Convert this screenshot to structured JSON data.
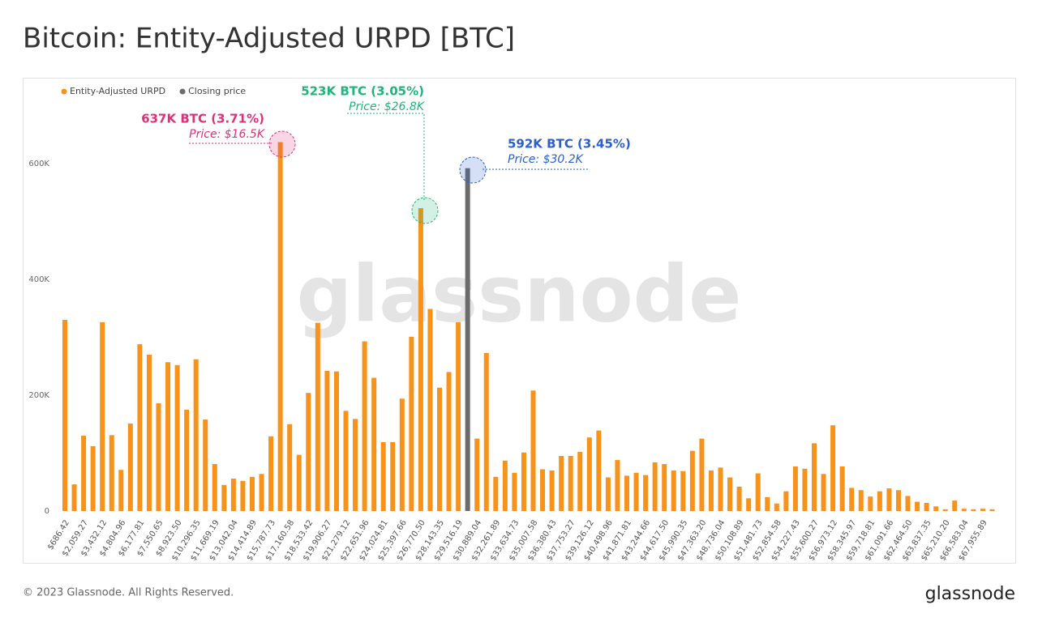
{
  "chart_data": {
    "type": "bar",
    "title": "Bitcoin: Entity-Adjusted URPD [BTC]",
    "categories": [
      "$686.42",
      null,
      "$2,059.27",
      null,
      "$3,432.12",
      null,
      "$4,804.96",
      null,
      "$6,177.81",
      null,
      "$7,550.65",
      null,
      "$8,923.50",
      null,
      "$10,296.35",
      null,
      "$11,669.19",
      null,
      "$13,042.04",
      null,
      "$14,414.89",
      null,
      "$15,787.73",
      null,
      "$17,160.58",
      null,
      "$18,533.42",
      null,
      "$19,906.27",
      null,
      "$21,279.12",
      null,
      "$22,651.96",
      null,
      "$24,024.81",
      null,
      "$25,397.66",
      null,
      "$26,770.50",
      null,
      "$28,143.35",
      null,
      "$29,516.19",
      null,
      "$30,889.04",
      null,
      "$32,261.89",
      null,
      "$33,634.73",
      null,
      "$35,007.58",
      null,
      "$36,380.43",
      null,
      "$37,753.27",
      null,
      "$39,126.12",
      null,
      "$40,498.96",
      null,
      "$41,871.81",
      null,
      "$43,244.66",
      null,
      "$44,617.50",
      null,
      "$45,990.35",
      null,
      "$47,363.20",
      null,
      "$48,736.04",
      null,
      "$50,108.89",
      null,
      "$51,481.73",
      null,
      "$52,854.58",
      null,
      "$54,227.43",
      null,
      "$55,600.27",
      null,
      "$56,973.12",
      null,
      "$58,345.97",
      null,
      "$59,718.81",
      null,
      "$61,091.66",
      null,
      "$62,464.50",
      null,
      "$63,837.35",
      null,
      "$65,210.20",
      null,
      "$66,583.04",
      null,
      "$67,955.89",
      null
    ],
    "series": [
      {
        "name": "Entity-Adjusted URPD",
        "color": "#f7931a",
        "values": [
          330000,
          46000,
          130000,
          112000,
          326000,
          131000,
          71000,
          151000,
          288000,
          270000,
          186000,
          257000,
          252000,
          175000,
          262000,
          158000,
          81000,
          45000,
          56000,
          52000,
          59000,
          64000,
          129000,
          637000,
          150000,
          97000,
          204000,
          325000,
          242000,
          241000,
          173000,
          159000,
          293000,
          230000,
          119000,
          119000,
          194000,
          301000,
          523000,
          349000,
          213000,
          240000,
          326000,
          null,
          125000,
          273000,
          59000,
          87000,
          66000,
          101000,
          208000,
          72000,
          70000,
          95000,
          95000,
          102000,
          127000,
          139000,
          58000,
          88000,
          61000,
          66000,
          62000,
          84000,
          81000,
          70000,
          69000,
          104000,
          125000,
          70000,
          75000,
          58000,
          42000,
          22000,
          65000,
          24000,
          13000,
          34000,
          77000,
          73000,
          117000,
          64000,
          148000,
          77000,
          40000,
          36000,
          25000,
          34000,
          39000,
          36000,
          26000,
          16000,
          14000,
          8000,
          3000,
          18000,
          4000,
          3000,
          4000,
          3000
        ]
      },
      {
        "name": "Closing price",
        "color": "#6b6b6b",
        "values": [
          null,
          null,
          null,
          null,
          null,
          null,
          null,
          null,
          null,
          null,
          null,
          null,
          null,
          null,
          null,
          null,
          null,
          null,
          null,
          null,
          null,
          null,
          null,
          null,
          null,
          null,
          null,
          null,
          null,
          null,
          null,
          null,
          null,
          null,
          null,
          null,
          null,
          null,
          null,
          null,
          null,
          null,
          null,
          592000,
          null,
          null,
          null,
          null,
          null,
          null,
          null,
          null,
          null,
          null,
          null,
          null,
          null,
          null,
          null,
          null,
          null,
          null,
          null,
          null,
          null,
          null,
          null,
          null,
          null,
          null,
          null,
          null,
          null,
          null,
          null,
          null,
          null,
          null,
          null,
          null,
          null,
          null,
          null,
          null,
          null,
          null,
          null,
          null,
          null,
          null,
          null,
          null,
          null,
          null,
          null,
          null,
          null,
          null,
          null,
          null
        ]
      }
    ],
    "ylim": [
      0,
      700000
    ],
    "yticks": [
      0,
      {
        "value": 200000,
        "label": "200K"
      },
      {
        "value": 400000,
        "label": "400K"
      },
      {
        "value": 600000,
        "label": "600K"
      }
    ],
    "annotations": [
      {
        "text": "637K BTC (3.71%)",
        "subtext": "Price: $16.5K",
        "color": "#e0307a"
      },
      {
        "text": "523K BTC (3.05%)",
        "subtext": "Price: $26.8K",
        "color": "#1fb57a"
      },
      {
        "text": "592K BTC (3.45%)",
        "subtext": "Price: $30.2K",
        "color": "#2b5fcf"
      }
    ],
    "watermark": "glassnode",
    "footer": "© 2023 Glassnode. All Rights Reserved.",
    "logo": "glassnode"
  }
}
